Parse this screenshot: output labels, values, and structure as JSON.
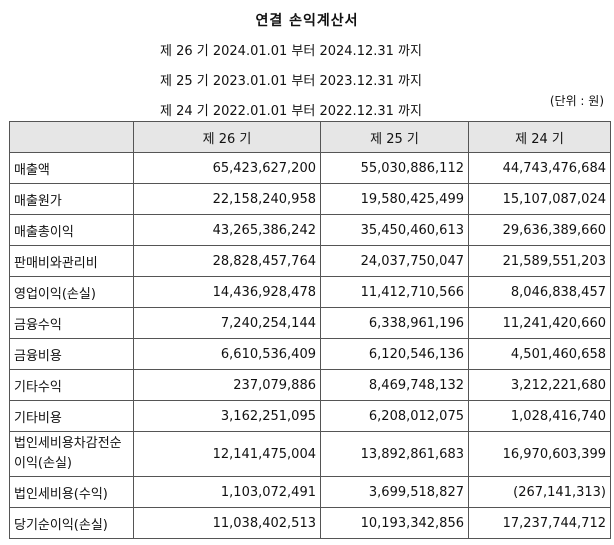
{
  "report": {
    "title": "연결 손익계산서",
    "periods": [
      "제 26 기 2024.01.01 부터 2024.12.31 까지",
      "제 25 기 2023.01.01 부터 2023.12.31 까지",
      "제 24 기 2022.01.01 부터 2022.12.31 까지"
    ],
    "unit": "(단위 : 원)"
  },
  "table": {
    "headers": [
      "",
      "제 26 기",
      "제 25 기",
      "제 24 기"
    ],
    "rows": [
      {
        "label": "매출액",
        "values": [
          "65,423,627,200",
          "55,030,886,112",
          "44,743,476,684"
        ]
      },
      {
        "label": "매출원가",
        "values": [
          "22,158,240,958",
          "19,580,425,499",
          "15,107,087,024"
        ]
      },
      {
        "label": "매출총이익",
        "values": [
          "43,265,386,242",
          "35,450,460,613",
          "29,636,389,660"
        ]
      },
      {
        "label": "판매비와관리비",
        "values": [
          "28,828,457,764",
          "24,037,750,047",
          "21,589,551,203"
        ]
      },
      {
        "label": "영업이익(손실)",
        "values": [
          "14,436,928,478",
          "11,412,710,566",
          "8,046,838,457"
        ]
      },
      {
        "label": "금융수익",
        "values": [
          "7,240,254,144",
          "6,338,961,196",
          "11,241,420,660"
        ]
      },
      {
        "label": "금융비용",
        "values": [
          "6,610,536,409",
          "6,120,546,136",
          "4,501,460,658"
        ]
      },
      {
        "label": "기타수익",
        "values": [
          "237,079,886",
          "8,469,748,132",
          "3,212,221,680"
        ]
      },
      {
        "label": "기타비용",
        "values": [
          "3,162,251,095",
          "6,208,012,075",
          "1,028,416,740"
        ]
      },
      {
        "label": "법인세비용차감전순이익(손실)",
        "values": [
          "12,141,475,004",
          "13,892,861,683",
          "16,970,603,399"
        ]
      },
      {
        "label": "법인세비용(수익)",
        "values": [
          "1,103,072,491",
          "3,699,518,827",
          "(267,141,313)"
        ]
      },
      {
        "label": "당기순이익(손실)",
        "values": [
          "11,038,402,513",
          "10,193,342,856",
          "17,237,744,712"
        ]
      }
    ]
  }
}
